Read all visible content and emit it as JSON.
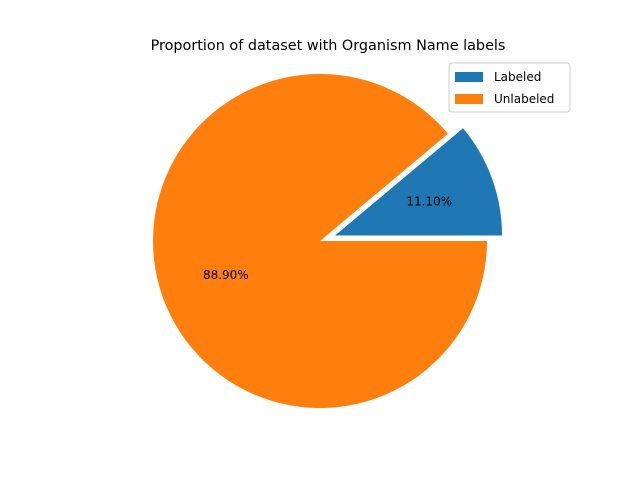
{
  "chart_data": {
    "type": "pie",
    "title": "Proportion of dataset with Organism Name labels",
    "slices": [
      {
        "label": "Labeled",
        "value": 11.1,
        "display": "11.10%",
        "color": "#1f77b4",
        "exploded": true
      },
      {
        "label": "Unlabeled",
        "value": 88.9,
        "display": "88.90%",
        "color": "#ff7f0e",
        "exploded": false
      }
    ],
    "legend": {
      "placement": "top-right"
    }
  }
}
